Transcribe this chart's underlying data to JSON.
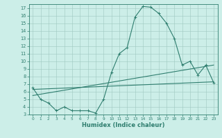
{
  "xlabel": "Humidex (Indice chaleur)",
  "x_values": [
    0,
    1,
    2,
    3,
    4,
    5,
    6,
    7,
    8,
    9,
    10,
    11,
    12,
    13,
    14,
    15,
    16,
    17,
    18,
    19,
    20,
    21,
    22,
    23
  ],
  "line1_y": [
    6.5,
    5.0,
    4.5,
    3.5,
    4.0,
    3.5,
    3.5,
    3.5,
    3.2,
    5.0,
    8.5,
    11.0,
    11.8,
    15.8,
    17.2,
    17.1,
    16.3,
    15.0,
    13.0,
    9.5,
    10.0,
    8.2,
    9.5,
    7.2
  ],
  "line2_x": [
    0,
    23
  ],
  "line2_y": [
    6.3,
    7.3
  ],
  "line3_x": [
    0,
    23
  ],
  "line3_y": [
    5.5,
    9.5
  ],
  "line_color": "#2e7d6e",
  "bg_color": "#cceee8",
  "grid_color": "#9fc8c0",
  "ylim": [
    3,
    17.5
  ],
  "xlim": [
    -0.5,
    23.5
  ],
  "yticks": [
    3,
    4,
    5,
    6,
    7,
    8,
    9,
    10,
    11,
    12,
    13,
    14,
    15,
    16,
    17
  ],
  "xticks": [
    0,
    1,
    2,
    3,
    4,
    5,
    6,
    7,
    8,
    9,
    10,
    11,
    12,
    13,
    14,
    15,
    16,
    17,
    18,
    19,
    20,
    21,
    22,
    23
  ],
  "xlabel_fontsize": 6.0,
  "tick_fontsize": 5.0
}
